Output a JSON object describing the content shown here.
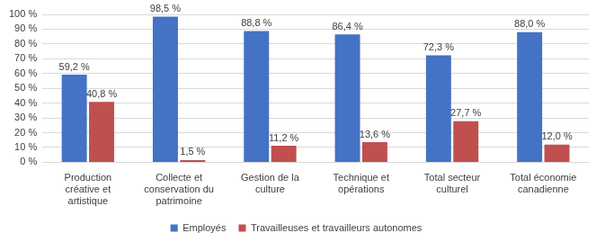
{
  "chart_data": {
    "type": "bar",
    "categories": [
      "Production créative et artistique",
      "Collecte et conservation du patrimoine",
      "Gestion de la culture",
      "Technique et opérations",
      "Total secteur culturel",
      "Total économie canadienne"
    ],
    "series": [
      {
        "name": "Employés",
        "color": "#4472c4",
        "values": [
          59.2,
          98.5,
          88.8,
          86.4,
          72.3,
          88.0
        ],
        "value_labels": [
          "59,2 %",
          "98,5 %",
          "88,8 %",
          "86,4 %",
          "72,3 %",
          "88,0 %"
        ]
      },
      {
        "name": "Travailleuses et travailleurs autonomes",
        "color": "#c0504d",
        "values": [
          40.8,
          1.5,
          11.2,
          13.6,
          27.7,
          12.0
        ],
        "value_labels": [
          "40,8 %",
          "1,5 %",
          "11,2 %",
          "13,6 %",
          "27,7 %",
          "12,0 %"
        ]
      }
    ],
    "ylim": [
      0,
      100
    ],
    "yticks": [
      {
        "value": 0,
        "label": "0 %"
      },
      {
        "value": 10,
        "label": "10 %"
      },
      {
        "value": 20,
        "label": "20 %"
      },
      {
        "value": 30,
        "label": "30 %"
      },
      {
        "value": 40,
        "label": "40 %"
      },
      {
        "value": 50,
        "label": "50 %"
      },
      {
        "value": 60,
        "label": "60 %"
      },
      {
        "value": 70,
        "label": "70 %"
      },
      {
        "value": 80,
        "label": "80 %"
      },
      {
        "value": 90,
        "label": "90 %"
      },
      {
        "value": 100,
        "label": "100 %"
      }
    ],
    "grid": true,
    "legend": "bottom",
    "data_labels": true
  }
}
